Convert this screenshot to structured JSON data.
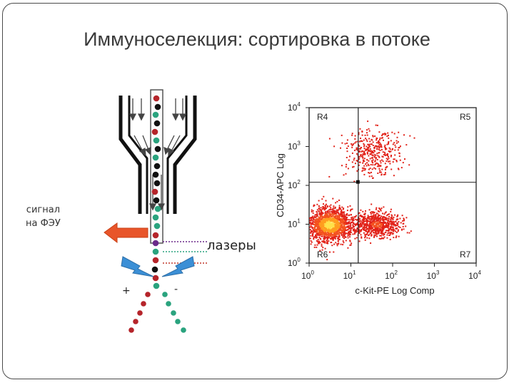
{
  "slide": {
    "title": "Иммуноселекция: сортировка в потоке"
  },
  "diagram": {
    "signal_label_line1": "сигнал",
    "signal_label_line2": "на ФЭУ",
    "lasers_label": "лазеры",
    "plus_label": "+",
    "minus_label": "-",
    "colors": {
      "red_cell": "#b5242a",
      "green_cell": "#2aa37e",
      "black_cell": "#111111",
      "purple_cell": "#6b2a8a",
      "arrow": "#e8552a",
      "lightning": "#3b8fd6"
    }
  },
  "chart_data": {
    "type": "scatter",
    "xlabel": "c-Kit-PE Log Comp",
    "ylabel": "CD34-APC Log",
    "xscale": "log",
    "yscale": "log",
    "xlim": [
      1,
      10000
    ],
    "ylim": [
      1,
      10000
    ],
    "x_ticks": [
      {
        "base": "10",
        "exp": "0"
      },
      {
        "base": "10",
        "exp": "1"
      },
      {
        "base": "10",
        "exp": "2"
      },
      {
        "base": "10",
        "exp": "3"
      },
      {
        "base": "10",
        "exp": "4"
      }
    ],
    "y_ticks": [
      {
        "base": "10",
        "exp": "0"
      },
      {
        "base": "10",
        "exp": "1"
      },
      {
        "base": "10",
        "exp": "2"
      },
      {
        "base": "10",
        "exp": "3"
      },
      {
        "base": "10",
        "exp": "4"
      }
    ],
    "gates": {
      "vertical_x": 15,
      "horizontal_y": 120,
      "regions": [
        "R4",
        "R5",
        "R6",
        "R7"
      ]
    },
    "populations": [
      {
        "x_center": 3,
        "y_center": 10,
        "density": "high"
      },
      {
        "x_center": 40,
        "y_center": 10,
        "density": "medium"
      },
      {
        "x_center": 30,
        "y_center": 700,
        "density": "low"
      }
    ],
    "grid": false
  }
}
